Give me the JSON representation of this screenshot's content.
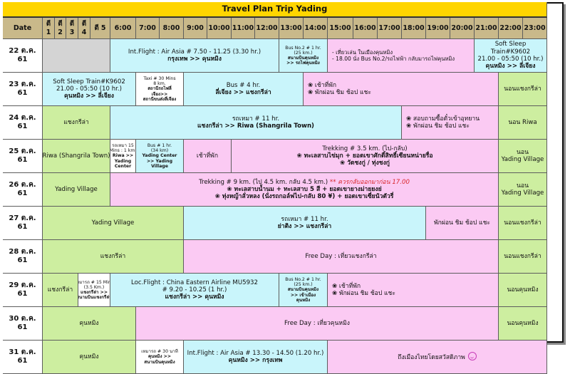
{
  "title": "Travel Plan Trip Yading",
  "headers": [
    "Date",
    "ตี 1",
    "ตี 2",
    "ตี 3",
    "ตี 4",
    "ตี 5",
    "6:00",
    "7:00",
    "8:00",
    "9:00",
    "10:00",
    "11:00",
    "12:00",
    "13:00",
    "14:00",
    "15:00",
    "16:00",
    "17:00",
    "18:00",
    "19:00",
    "20:00",
    "21:00",
    "22:00",
    "23:00"
  ],
  "colors": {
    "title_bg": "#ffd500",
    "header_bg": "#c9b98a",
    "gray": "#d4d4d4",
    "cyan": "#c9f5fb",
    "pink": "#fbcaf3",
    "green": "#cdeea0",
    "white": "#ffffff"
  },
  "rows": [
    {
      "date": "22 ต.ค. 61",
      "blocks": [
        {
          "c0": 1,
          "span": 5,
          "color": "gray",
          "lines": []
        },
        {
          "c0": 6,
          "span": 7,
          "color": "cyan",
          "lines": [
            [
              "Int.Flight : Air Asia # 7.50 - 11.25 (3.30 hr.)",
              ""
            ],
            [
              "กรุงเทพ >> คุนหมิง",
              "b"
            ]
          ]
        },
        {
          "c0": 13,
          "span": 2,
          "color": "cyan",
          "size": "sm",
          "lines": [
            [
              "Bus No.2 # 1 hr.",
              ""
            ],
            [
              "(25 km.)",
              ""
            ],
            [
              "สนามบินคุนหมิง",
              "b"
            ],
            [
              ">> รถไฟคุนหมิง",
              "b"
            ]
          ]
        },
        {
          "c0": 15,
          "span": 6,
          "color": "pink",
          "align": "left",
          "size": "md",
          "lines": [
            [
              "- เที่ยวเล่น ในเมืองคุนหมิง",
              ""
            ],
            [
              "- 18.00 นั่ง Bus No.2/รถไฟฟ้า กลับมารถไฟคุนหมิง",
              ""
            ]
          ]
        },
        {
          "c0": 21,
          "span": 3,
          "color": "cyan",
          "lines": [
            [
              "Soft Sleep",
              ""
            ],
            [
              "Train#K9602",
              ""
            ],
            [
              "21.00 - 05:50 (10 hr.)",
              ""
            ],
            [
              "คุนหมิง >> ลี่เจียง",
              "b"
            ]
          ]
        }
      ]
    },
    {
      "date": "23 ต.ค. 61",
      "blocks": [
        {
          "c0": 1,
          "span": 6,
          "color": "cyan",
          "lines": [
            [
              "Soft Sleep Train#K9602",
              ""
            ],
            [
              "21.00 - 05:50 (10 hr.)",
              ""
            ],
            [
              "คุนหมิง >> ลี่เจียง",
              "b"
            ]
          ]
        },
        {
          "c0": 7,
          "span": 2,
          "color": "white",
          "size": "sm",
          "lines": [
            [
              "Taxi # 30 Mins",
              ""
            ],
            [
              "8 km.",
              ""
            ],
            [
              "สถานีรถไฟลี่",
              "b"
            ],
            [
              "เจียง>>",
              "b"
            ],
            [
              "สถานีขนส่งลี่เจียง",
              "b"
            ]
          ]
        },
        {
          "c0": 9,
          "span": 5,
          "color": "cyan",
          "lines": [
            [
              "Bus # 4 hr.",
              ""
            ],
            [
              "ลี่เจียง >> แชงกรีล่า",
              "b"
            ]
          ]
        },
        {
          "c0": 14,
          "span": 8,
          "color": "pink",
          "align": "left",
          "lines": [
            [
              "❀  เช้าที่พัก",
              ""
            ],
            [
              "❀  พักผ่อน ชิม ช้อป แชะ",
              ""
            ]
          ]
        },
        {
          "c0": 22,
          "span": 2,
          "color": "green",
          "lines": [
            [
              "นอนแชงกรีล่า",
              ""
            ]
          ]
        }
      ]
    },
    {
      "date": "24 ต.ค. 61",
      "blocks": [
        {
          "c0": 1,
          "span": 5,
          "color": "green",
          "lines": [
            [
              "แชงกรีล่า",
              ""
            ]
          ]
        },
        {
          "c0": 6,
          "span": 12,
          "color": "cyan",
          "lines": [
            [
              "รถเหมา # 11 hr.",
              ""
            ],
            [
              "แชงกรีล่า >> Riwa (Shangrila Town)",
              "b"
            ]
          ]
        },
        {
          "c0": 18,
          "span": 4,
          "color": "pink",
          "align": "left",
          "lines": [
            [
              "❀  สอบถามซื้อตั๋วเข้าอุทยาน",
              ""
            ],
            [
              "❀  พักผ่อน ชิม ช้อป แชะ",
              ""
            ]
          ]
        },
        {
          "c0": 22,
          "span": 2,
          "color": "green",
          "lines": [
            [
              "นอน Riwa",
              ""
            ]
          ]
        }
      ]
    },
    {
      "date": "25 ต.ค. 61",
      "blocks": [
        {
          "c0": 1,
          "span": 5,
          "color": "green",
          "lines": [
            [
              "Riwa (Shangrila Town)",
              ""
            ]
          ]
        },
        {
          "c0": 6,
          "span": 1,
          "color": "white",
          "size": "sm",
          "lines": [
            [
              "รถเหมา 15",
              ""
            ],
            [
              "Mins : 1 km.",
              ""
            ],
            [
              "Riwa >>",
              "b"
            ],
            [
              "Yading",
              "b"
            ],
            [
              "Center",
              "b"
            ]
          ]
        },
        {
          "c0": 7,
          "span": 2,
          "color": "cyan",
          "size": "sm",
          "lines": [
            [
              "Bus # 1 hr.",
              ""
            ],
            [
              "(34 km)",
              ""
            ],
            [
              "Yading Center",
              "b"
            ],
            [
              ">> Yading",
              "b"
            ],
            [
              "Village",
              "b"
            ]
          ]
        },
        {
          "c0": 9,
          "span": 2,
          "color": "pink",
          "lines": [
            [
              "เช้าที่พัก",
              ""
            ]
          ]
        },
        {
          "c0": 11,
          "span": 11,
          "color": "pink",
          "lines": [
            [
              "Trekking # 3.5 km. (ไป-กลับ)",
              ""
            ],
            [
              "❀ ทะเลสาบไข่มุก + ยอดเขาศักดิ์สิทธิ์เซียนหน่ายรื่อ",
              "b"
            ],
            [
              "❀ วัดชงกู่ / ทุ่งชงกู่",
              "b"
            ]
          ]
        },
        {
          "c0": 22,
          "span": 2,
          "color": "green",
          "lines": [
            [
              "นอน",
              ""
            ],
            [
              "Yading Village",
              ""
            ]
          ]
        }
      ]
    },
    {
      "date": "26 ต.ค. 61",
      "blocks": [
        {
          "c0": 1,
          "span": 5,
          "color": "green",
          "lines": [
            [
              "Yading Village",
              ""
            ]
          ]
        },
        {
          "c0": 6,
          "span": 16,
          "color": "pink",
          "special": "trek26",
          "lines": [
            [
              "Trekking # 9 km. (ไป 4.5 km. กลับ 4.5 km.)",
              ""
            ],
            [
              "** ควรกลับออกมาก่อน 17.00",
              "red"
            ],
            [
              "❀ ทะเลสาบน้ำนม + ทะเลสาบ 5 สี + ยอดเขายางม่ายยงย่",
              "b"
            ],
            [
              "❀ ทุ่งหญ้าลั่วหลง (นั่งรถกอล์ฟไป-กลับ 80 ¥) + ยอดเขาเซี่ยนัวตัวรี่",
              "b"
            ]
          ]
        },
        {
          "c0": 22,
          "span": 2,
          "color": "green",
          "lines": [
            [
              "นอน",
              ""
            ],
            [
              "Yading Village",
              ""
            ]
          ]
        }
      ]
    },
    {
      "date": "27 ต.ค. 61",
      "blocks": [
        {
          "c0": 1,
          "span": 8,
          "color": "green",
          "lines": [
            [
              "Yading Village",
              ""
            ]
          ]
        },
        {
          "c0": 9,
          "span": 10,
          "color": "cyan",
          "lines": [
            [
              "รถเหมา # 11 hr.",
              ""
            ],
            [
              "ย่าติง >> แชงกรีล่า",
              "b"
            ]
          ]
        },
        {
          "c0": 19,
          "span": 3,
          "color": "pink",
          "lines": [
            [
              "พักผ่อน ชิม ช้อป แชะ",
              ""
            ]
          ]
        },
        {
          "c0": 22,
          "span": 2,
          "color": "green",
          "lines": [
            [
              "นอนแชงกรีล่า",
              ""
            ]
          ]
        }
      ]
    },
    {
      "date": "28 ต.ค. 61",
      "blocks": [
        {
          "c0": 1,
          "span": 8,
          "color": "green",
          "lines": [
            [
              "แชงกรีล่า",
              ""
            ]
          ]
        },
        {
          "c0": 9,
          "span": 13,
          "color": "pink",
          "lines": [
            [
              "Free Day : เที่ยวแชงกรีล่า",
              ""
            ]
          ]
        },
        {
          "c0": 22,
          "span": 2,
          "color": "green",
          "lines": [
            [
              "นอนแชงกรีล่า",
              ""
            ]
          ]
        }
      ]
    },
    {
      "date": "29 ต.ค. 61",
      "blocks": [
        {
          "c0": 1,
          "span": 3,
          "color": "green",
          "lines": [
            [
              "แชงกรีล่า",
              ""
            ]
          ]
        },
        {
          "c0": 4,
          "span": 2,
          "color": "white",
          "size": "sm",
          "lines": [
            [
              "เหมารถ # 15 Mins",
              ""
            ],
            [
              "(3.5 Km.)",
              ""
            ],
            [
              "แชงกรีล่า >>",
              "b"
            ],
            [
              "สนามบินแชงกรีล่า",
              "b"
            ]
          ]
        },
        {
          "c0": 6,
          "span": 7,
          "color": "cyan",
          "lines": [
            [
              "Loc.Flight : China Eastern Airline MU5932",
              ""
            ],
            [
              "# 9.20 - 10.25 (1 hr.)",
              ""
            ],
            [
              "แชงกรีล่า >> คุนหมิง",
              "b"
            ]
          ]
        },
        {
          "c0": 13,
          "span": 2,
          "color": "cyan",
          "size": "sm",
          "lines": [
            [
              "Bus No.2 # 1 hr.",
              ""
            ],
            [
              "(25 km.)",
              ""
            ],
            [
              "สนามบินคุนหมิง",
              "b"
            ],
            [
              ">> เข้าเมือง",
              "b"
            ],
            [
              "คุนหมิง",
              "b"
            ]
          ]
        },
        {
          "c0": 15,
          "span": 7,
          "color": "pink",
          "align": "left",
          "lines": [
            [
              "❀   เช้าที่พัก",
              ""
            ],
            [
              "❀   พักผ่อน ชิม ช้อป แชะ",
              ""
            ]
          ]
        },
        {
          "c0": 22,
          "span": 2,
          "color": "green",
          "lines": [
            [
              "นอนคุนหมิง",
              ""
            ]
          ]
        }
      ]
    },
    {
      "date": "30 ต.ค. 61",
      "blocks": [
        {
          "c0": 1,
          "span": 6,
          "color": "green",
          "lines": [
            [
              "คุนหมิง",
              ""
            ]
          ]
        },
        {
          "c0": 7,
          "span": 15,
          "color": "pink",
          "lines": [
            [
              "Free Day : เที่ยวคุนหมิง",
              ""
            ]
          ]
        },
        {
          "c0": 22,
          "span": 2,
          "color": "green",
          "lines": [
            [
              "นอนคุนหมิง",
              ""
            ]
          ]
        }
      ]
    },
    {
      "date": "31 ต.ค. 61",
      "blocks": [
        {
          "c0": 1,
          "span": 6,
          "color": "green",
          "lines": [
            [
              "คุนหมิง",
              ""
            ]
          ]
        },
        {
          "c0": 7,
          "span": 2,
          "color": "white",
          "size": "sm",
          "lines": [
            [
              "เหมารถ # 30 นาที",
              ""
            ],
            [
              "คุนหมิง >>",
              "b"
            ],
            [
              "สนามบินคุนหมิง",
              "b"
            ]
          ]
        },
        {
          "c0": 9,
          "span": 6,
          "color": "cyan",
          "lines": [
            [
              "Int.Flight : Air Asia # 13.30 - 14.50 (1.20 hr.)",
              ""
            ],
            [
              "คุนหมิง >> กรุงเทพ",
              "b"
            ]
          ]
        },
        {
          "c0": 15,
          "span": 9,
          "color": "pink",
          "smile": true,
          "lines": [
            [
              "ถึงเมืองไทยโดยสวัสดิภาพ",
              ""
            ]
          ]
        }
      ]
    }
  ]
}
